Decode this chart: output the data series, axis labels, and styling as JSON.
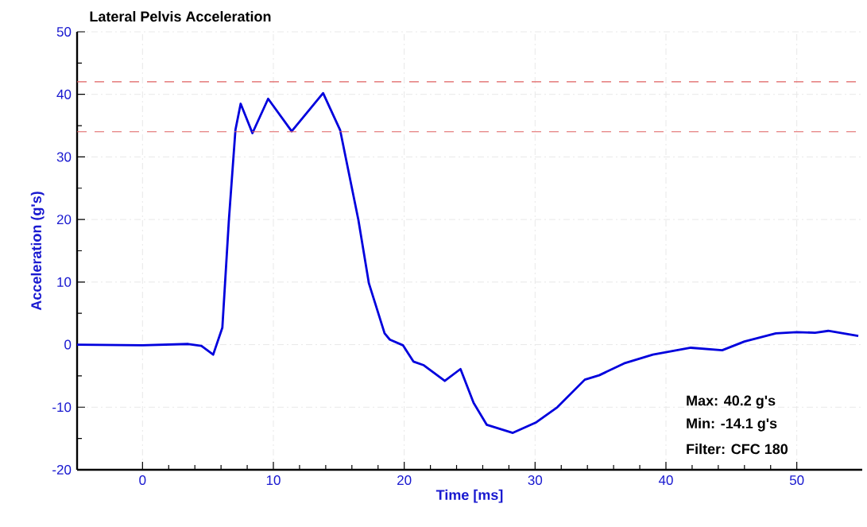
{
  "chart_data": {
    "type": "line",
    "title": "Lateral Pelvis Acceleration",
    "xlabel": "Time [ms]",
    "ylabel": "Acceleration (g's)",
    "xlim": [
      -5,
      55
    ],
    "ylim": [
      -20,
      50
    ],
    "xticks": [
      0,
      10,
      20,
      30,
      40,
      50
    ],
    "yticks": [
      -20,
      -10,
      0,
      10,
      20,
      30,
      40,
      50
    ],
    "grid": true,
    "series": [
      {
        "color": "#0000dd",
        "x": [
          -5,
          0,
          3.5,
          4.5,
          5.4,
          6.1,
          6.6,
          7.1,
          7.5,
          8.4,
          9.6,
          11.4,
          13.8,
          15.1,
          16.5,
          17.3,
          18.5,
          18.9,
          19.9,
          20.7,
          21.5,
          23.1,
          24.3,
          25.3,
          26.3,
          28.3,
          30.1,
          31.7,
          33.8,
          34.9,
          36.8,
          39.0,
          41.9,
          44.3,
          46.0,
          48.4,
          50.0,
          51.4,
          52.4,
          54.7
        ],
        "values": [
          0,
          -0.1,
          0.1,
          -0.2,
          -1.6,
          2.7,
          19.9,
          34.3,
          38.5,
          33.8,
          39.3,
          34.1,
          40.2,
          34.3,
          19.9,
          9.8,
          1.8,
          0.8,
          -0.1,
          -2.7,
          -3.3,
          -5.8,
          -3.9,
          -9.3,
          -12.8,
          -14.1,
          -12.4,
          -10.0,
          -5.6,
          -4.9,
          -3.0,
          -1.6,
          -0.5,
          -0.9,
          0.5,
          1.8,
          2.0,
          1.9,
          2.2,
          1.4
        ]
      }
    ],
    "ref_lines": [
      {
        "axis": "y",
        "value": 42,
        "color": "#e06060",
        "line_style": "dashed"
      },
      {
        "axis": "y",
        "value": 34,
        "color": "#e06060",
        "line_style": "dashed"
      }
    ],
    "annotations": [
      "Max:  40.2 g's",
      "Min: -14.1 g's",
      "Filter: CFC 180"
    ]
  }
}
